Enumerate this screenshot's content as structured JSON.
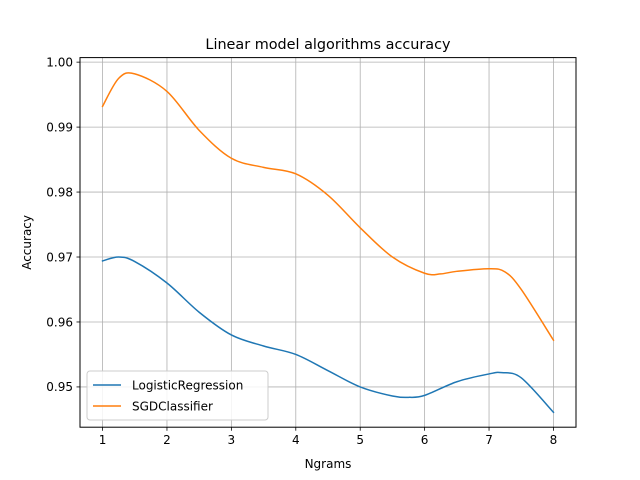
{
  "chart_data": {
    "type": "line",
    "title": "Linear model algorithms accuracy",
    "xlabel": "Ngrams",
    "ylabel": "Accuracy",
    "xlim": [
      0.65,
      8.35
    ],
    "ylim": [
      0.9438,
      1.0007
    ],
    "xticks": [
      1,
      2,
      3,
      4,
      5,
      6,
      7,
      8
    ],
    "xtick_labels": [
      "1",
      "2",
      "3",
      "4",
      "5",
      "6",
      "7",
      "8"
    ],
    "yticks": [
      0.95,
      0.96,
      0.97,
      0.98,
      0.99,
      1.0
    ],
    "ytick_labels": [
      "0.95",
      "0.96",
      "0.97",
      "0.98",
      "0.99",
      "1.00"
    ],
    "grid": true,
    "legend_position": "lower-left",
    "series": [
      {
        "name": "LogisticRegression",
        "color": "#1f77b4",
        "x": [
          1.0,
          1.25,
          1.5,
          2.0,
          2.5,
          3.0,
          3.5,
          4.0,
          4.5,
          5.0,
          5.5,
          5.75,
          6.0,
          6.5,
          7.0,
          7.2,
          7.5,
          8.0
        ],
        "values": [
          0.9694,
          0.97,
          0.9693,
          0.966,
          0.9615,
          0.958,
          0.9563,
          0.955,
          0.9525,
          0.95,
          0.9486,
          0.9484,
          0.9487,
          0.9508,
          0.952,
          0.9522,
          0.9514,
          0.9461
        ]
      },
      {
        "name": "SGDClassifier",
        "color": "#ff7f0e",
        "x": [
          1.0,
          1.25,
          1.5,
          2.0,
          2.5,
          3.0,
          3.5,
          4.0,
          4.5,
          5.0,
          5.5,
          6.0,
          6.25,
          6.5,
          7.0,
          7.25,
          7.5,
          8.0
        ],
        "values": [
          0.9932,
          0.9975,
          0.9982,
          0.9955,
          0.9895,
          0.9852,
          0.9838,
          0.9828,
          0.9795,
          0.9745,
          0.97,
          0.9675,
          0.9674,
          0.9678,
          0.9682,
          0.9677,
          0.965,
          0.9572
        ]
      }
    ]
  }
}
